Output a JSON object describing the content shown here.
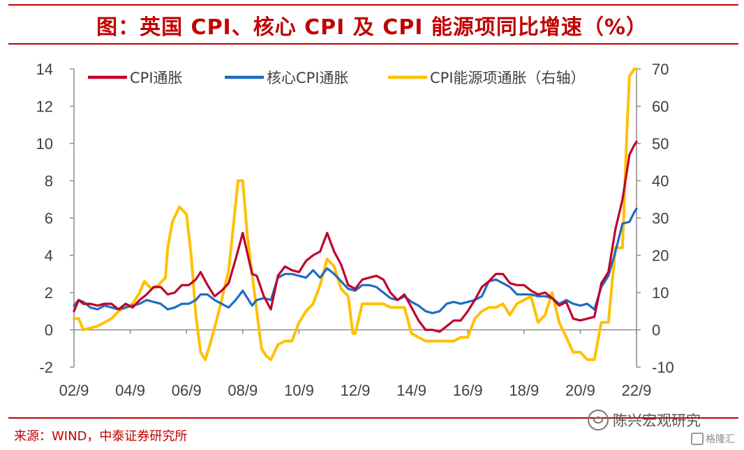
{
  "title": "图：英国 CPI、核心 CPI 及 CPI 能源项同比增速（%）",
  "source": "来源：WIND，中泰证券研究所",
  "watermark": "陈兴宏观研究",
  "watermark2": "格隆汇",
  "colors": {
    "title": "#c00000",
    "cpi": "#c0002a",
    "core": "#1f6cc4",
    "energy": "#ffc000"
  },
  "chart_data": {
    "type": "line",
    "x_ticks": [
      "02/9",
      "04/9",
      "06/9",
      "08/9",
      "10/9",
      "12/9",
      "14/9",
      "16/9",
      "18/9",
      "20/9",
      "22/9"
    ],
    "left_axis": {
      "min": -2,
      "max": 14,
      "ticks": [
        "14",
        "12",
        "10",
        "8",
        "6",
        "4",
        "2",
        "0",
        "-2"
      ]
    },
    "right_axis": {
      "min": -10,
      "max": 70,
      "ticks": [
        "70",
        "60",
        "50",
        "40",
        "30",
        "20",
        "10",
        "0",
        "-10"
      ]
    },
    "grid": false,
    "legend_position": "top",
    "series": [
      {
        "name": "CPI通胀",
        "axis": "left",
        "color": "#c0002a",
        "points": [
          [
            "2002-09",
            1.0
          ],
          [
            "2002-11",
            1.6
          ],
          [
            "2003-01",
            1.4
          ],
          [
            "2003-04",
            1.4
          ],
          [
            "2003-07",
            1.3
          ],
          [
            "2003-10",
            1.4
          ],
          [
            "2004-01",
            1.4
          ],
          [
            "2004-04",
            1.1
          ],
          [
            "2004-07",
            1.4
          ],
          [
            "2004-10",
            1.2
          ],
          [
            "2005-01",
            1.6
          ],
          [
            "2005-04",
            1.9
          ],
          [
            "2005-07",
            2.3
          ],
          [
            "2005-10",
            2.3
          ],
          [
            "2006-01",
            1.9
          ],
          [
            "2006-04",
            2.0
          ],
          [
            "2006-07",
            2.4
          ],
          [
            "2006-10",
            2.4
          ],
          [
            "2007-01",
            2.7
          ],
          [
            "2007-03",
            3.1
          ],
          [
            "2007-06",
            2.4
          ],
          [
            "2007-09",
            1.8
          ],
          [
            "2007-12",
            2.1
          ],
          [
            "2008-03",
            2.5
          ],
          [
            "2008-06",
            3.8
          ],
          [
            "2008-09",
            5.2
          ],
          [
            "2008-11",
            4.1
          ],
          [
            "2009-01",
            3.0
          ],
          [
            "2009-03",
            2.9
          ],
          [
            "2009-06",
            1.8
          ],
          [
            "2009-09",
            1.1
          ],
          [
            "2009-12",
            2.9
          ],
          [
            "2010-03",
            3.4
          ],
          [
            "2010-06",
            3.2
          ],
          [
            "2010-09",
            3.1
          ],
          [
            "2010-12",
            3.7
          ],
          [
            "2011-03",
            4.0
          ],
          [
            "2011-06",
            4.2
          ],
          [
            "2011-09",
            5.2
          ],
          [
            "2011-12",
            4.2
          ],
          [
            "2012-03",
            3.5
          ],
          [
            "2012-06",
            2.4
          ],
          [
            "2012-09",
            2.2
          ],
          [
            "2012-12",
            2.7
          ],
          [
            "2013-03",
            2.8
          ],
          [
            "2013-06",
            2.9
          ],
          [
            "2013-09",
            2.7
          ],
          [
            "2013-12",
            2.0
          ],
          [
            "2014-03",
            1.6
          ],
          [
            "2014-06",
            1.9
          ],
          [
            "2014-09",
            1.2
          ],
          [
            "2014-12",
            0.5
          ],
          [
            "2015-03",
            0.0
          ],
          [
            "2015-06",
            0.0
          ],
          [
            "2015-09",
            -0.1
          ],
          [
            "2015-12",
            0.2
          ],
          [
            "2016-03",
            0.5
          ],
          [
            "2016-06",
            0.5
          ],
          [
            "2016-09",
            1.0
          ],
          [
            "2016-12",
            1.6
          ],
          [
            "2017-03",
            2.3
          ],
          [
            "2017-06",
            2.6
          ],
          [
            "2017-09",
            3.0
          ],
          [
            "2017-12",
            3.0
          ],
          [
            "2018-03",
            2.5
          ],
          [
            "2018-06",
            2.4
          ],
          [
            "2018-09",
            2.4
          ],
          [
            "2018-12",
            2.1
          ],
          [
            "2019-03",
            1.9
          ],
          [
            "2019-06",
            2.0
          ],
          [
            "2019-09",
            1.7
          ],
          [
            "2019-12",
            1.3
          ],
          [
            "2020-03",
            1.5
          ],
          [
            "2020-06",
            0.6
          ],
          [
            "2020-09",
            0.5
          ],
          [
            "2020-12",
            0.6
          ],
          [
            "2021-03",
            0.7
          ],
          [
            "2021-06",
            2.5
          ],
          [
            "2021-09",
            3.1
          ],
          [
            "2021-12",
            5.4
          ],
          [
            "2022-03",
            7.0
          ],
          [
            "2022-06",
            9.4
          ],
          [
            "2022-08",
            9.9
          ],
          [
            "2022-09",
            10.1
          ]
        ]
      },
      {
        "name": "核心CPI通胀",
        "axis": "left",
        "color": "#1f6cc4",
        "points": [
          [
            "2002-09",
            1.3
          ],
          [
            "2002-11",
            1.6
          ],
          [
            "2003-01",
            1.5
          ],
          [
            "2003-04",
            1.2
          ],
          [
            "2003-07",
            1.1
          ],
          [
            "2003-10",
            1.3
          ],
          [
            "2004-01",
            1.2
          ],
          [
            "2004-04",
            1.1
          ],
          [
            "2004-07",
            1.2
          ],
          [
            "2004-10",
            1.3
          ],
          [
            "2005-01",
            1.4
          ],
          [
            "2005-04",
            1.6
          ],
          [
            "2005-07",
            1.5
          ],
          [
            "2005-10",
            1.4
          ],
          [
            "2006-01",
            1.1
          ],
          [
            "2006-04",
            1.2
          ],
          [
            "2006-07",
            1.4
          ],
          [
            "2006-10",
            1.4
          ],
          [
            "2007-01",
            1.6
          ],
          [
            "2007-03",
            1.9
          ],
          [
            "2007-06",
            1.9
          ],
          [
            "2007-09",
            1.6
          ],
          [
            "2007-12",
            1.4
          ],
          [
            "2008-03",
            1.2
          ],
          [
            "2008-06",
            1.6
          ],
          [
            "2008-09",
            2.1
          ],
          [
            "2008-11",
            1.7
          ],
          [
            "2009-01",
            1.3
          ],
          [
            "2009-03",
            1.6
          ],
          [
            "2009-06",
            1.7
          ],
          [
            "2009-09",
            1.6
          ],
          [
            "2009-12",
            2.8
          ],
          [
            "2010-03",
            3.0
          ],
          [
            "2010-06",
            3.0
          ],
          [
            "2010-09",
            2.9
          ],
          [
            "2010-12",
            2.8
          ],
          [
            "2011-03",
            3.2
          ],
          [
            "2011-06",
            2.8
          ],
          [
            "2011-09",
            3.3
          ],
          [
            "2011-12",
            3.0
          ],
          [
            "2012-03",
            2.6
          ],
          [
            "2012-06",
            2.2
          ],
          [
            "2012-09",
            2.1
          ],
          [
            "2012-12",
            2.4
          ],
          [
            "2013-03",
            2.4
          ],
          [
            "2013-06",
            2.3
          ],
          [
            "2013-09",
            2.0
          ],
          [
            "2013-12",
            1.7
          ],
          [
            "2014-03",
            1.6
          ],
          [
            "2014-06",
            1.8
          ],
          [
            "2014-09",
            1.5
          ],
          [
            "2014-12",
            1.3
          ],
          [
            "2015-03",
            1.0
          ],
          [
            "2015-06",
            0.9
          ],
          [
            "2015-09",
            1.0
          ],
          [
            "2015-12",
            1.4
          ],
          [
            "2016-03",
            1.5
          ],
          [
            "2016-06",
            1.4
          ],
          [
            "2016-09",
            1.5
          ],
          [
            "2016-12",
            1.6
          ],
          [
            "2017-03",
            1.8
          ],
          [
            "2017-06",
            2.6
          ],
          [
            "2017-09",
            2.7
          ],
          [
            "2017-12",
            2.5
          ],
          [
            "2018-03",
            2.3
          ],
          [
            "2018-06",
            1.9
          ],
          [
            "2018-09",
            1.9
          ],
          [
            "2018-12",
            1.9
          ],
          [
            "2019-03",
            1.8
          ],
          [
            "2019-06",
            1.8
          ],
          [
            "2019-09",
            1.7
          ],
          [
            "2019-12",
            1.4
          ],
          [
            "2020-03",
            1.6
          ],
          [
            "2020-06",
            1.4
          ],
          [
            "2020-09",
            1.3
          ],
          [
            "2020-12",
            1.4
          ],
          [
            "2021-03",
            1.1
          ],
          [
            "2021-06",
            2.3
          ],
          [
            "2021-09",
            2.9
          ],
          [
            "2021-12",
            4.2
          ],
          [
            "2022-03",
            5.7
          ],
          [
            "2022-06",
            5.8
          ],
          [
            "2022-08",
            6.3
          ],
          [
            "2022-09",
            6.5
          ]
        ]
      },
      {
        "name": "CPI能源项通胀（右轴）",
        "axis": "right",
        "color": "#ffc000",
        "points": [
          [
            "2002-09",
            3
          ],
          [
            "2002-11",
            3
          ],
          [
            "2003-01",
            0
          ],
          [
            "2003-04",
            0.5
          ],
          [
            "2003-07",
            1
          ],
          [
            "2003-10",
            2
          ],
          [
            "2004-01",
            3
          ],
          [
            "2004-04",
            5
          ],
          [
            "2004-07",
            6
          ],
          [
            "2004-10",
            7
          ],
          [
            "2005-01",
            10
          ],
          [
            "2005-03",
            13
          ],
          [
            "2005-06",
            11
          ],
          [
            "2005-09",
            12
          ],
          [
            "2005-12",
            14
          ],
          [
            "2006-01",
            22
          ],
          [
            "2006-03",
            29
          ],
          [
            "2006-06",
            33
          ],
          [
            "2006-09",
            31
          ],
          [
            "2006-11",
            20
          ],
          [
            "2007-01",
            4
          ],
          [
            "2007-03",
            -6
          ],
          [
            "2007-05",
            -8
          ],
          [
            "2007-07",
            -4
          ],
          [
            "2007-10",
            3
          ],
          [
            "2007-12",
            8
          ],
          [
            "2008-03",
            16
          ],
          [
            "2008-05",
            28
          ],
          [
            "2008-07",
            40
          ],
          [
            "2008-09",
            40
          ],
          [
            "2008-11",
            25
          ],
          [
            "2009-01",
            15
          ],
          [
            "2009-03",
            5
          ],
          [
            "2009-05",
            -5
          ],
          [
            "2009-07",
            -7
          ],
          [
            "2009-09",
            -8
          ],
          [
            "2009-12",
            -4
          ],
          [
            "2010-03",
            -3
          ],
          [
            "2010-06",
            -3
          ],
          [
            "2010-09",
            2
          ],
          [
            "2010-12",
            5
          ],
          [
            "2011-03",
            7
          ],
          [
            "2011-06",
            12
          ],
          [
            "2011-09",
            19
          ],
          [
            "2011-12",
            17
          ],
          [
            "2012-03",
            11
          ],
          [
            "2012-06",
            9
          ],
          [
            "2012-08",
            -1
          ],
          [
            "2012-09",
            -1
          ],
          [
            "2012-12",
            7
          ],
          [
            "2013-03",
            7
          ],
          [
            "2013-06",
            7
          ],
          [
            "2013-09",
            7
          ],
          [
            "2013-12",
            6
          ],
          [
            "2014-03",
            6
          ],
          [
            "2014-06",
            6
          ],
          [
            "2014-09",
            -1
          ],
          [
            "2014-12",
            -2
          ],
          [
            "2015-03",
            -3
          ],
          [
            "2015-06",
            -3
          ],
          [
            "2015-09",
            -3
          ],
          [
            "2015-12",
            -3
          ],
          [
            "2016-03",
            -3
          ],
          [
            "2016-06",
            -2
          ],
          [
            "2016-09",
            -2
          ],
          [
            "2016-12",
            3
          ],
          [
            "2017-03",
            5
          ],
          [
            "2017-06",
            6
          ],
          [
            "2017-09",
            6
          ],
          [
            "2017-12",
            7
          ],
          [
            "2018-03",
            4
          ],
          [
            "2018-06",
            7
          ],
          [
            "2018-09",
            8
          ],
          [
            "2018-12",
            9
          ],
          [
            "2019-03",
            2
          ],
          [
            "2019-06",
            4
          ],
          [
            "2019-09",
            10
          ],
          [
            "2019-12",
            2
          ],
          [
            "2020-03",
            -2
          ],
          [
            "2020-06",
            -6
          ],
          [
            "2020-09",
            -6
          ],
          [
            "2020-12",
            -8
          ],
          [
            "2021-03",
            -8
          ],
          [
            "2021-06",
            2
          ],
          [
            "2021-09",
            2
          ],
          [
            "2021-12",
            22
          ],
          [
            "2022-03",
            22
          ],
          [
            "2022-05",
            55
          ],
          [
            "2022-06",
            68
          ],
          [
            "2022-08",
            70
          ],
          [
            "2022-09",
            70
          ]
        ]
      }
    ]
  }
}
